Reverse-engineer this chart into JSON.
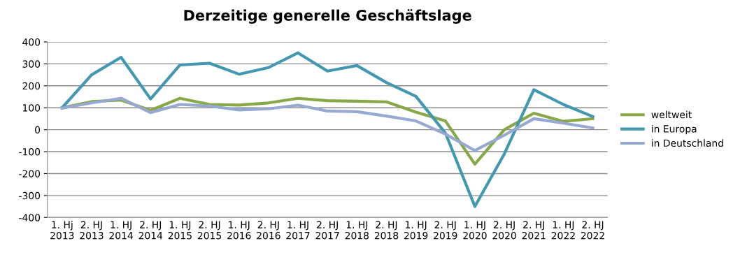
{
  "chart_data": {
    "type": "line",
    "title": "Derzeitige generelle Geschäftslage",
    "categories": [
      "1. Hj\n2013",
      "2. HJ\n2013",
      "1. HJ\n2014",
      "2. HJ\n2014",
      "1. HJ\n2015",
      "2. HJ\n2015",
      "1. HJ\n2016",
      "2. HJ\n2016",
      "1. HJ\n2017",
      "2. HJ\n2017",
      "1. HJ\n2018",
      "2. HJ\n2018",
      "1. HJ\n2019",
      "2. HJ\n2019",
      "1. HJ\n2020",
      "2. HJ\n2020",
      "2. HJ\n2021",
      "1. HJ\n2022",
      "2. HJ\n2022"
    ],
    "series": [
      {
        "name": "weltweit",
        "color": "#86a846",
        "values": [
          100,
          128,
          135,
          88,
          143,
          115,
          112,
          122,
          143,
          132,
          130,
          127,
          80,
          40,
          -157,
          0,
          75,
          38,
          50
        ]
      },
      {
        "name": "in Europa",
        "color": "#4298b0",
        "values": [
          100,
          250,
          330,
          140,
          295,
          303,
          253,
          283,
          350,
          267,
          292,
          215,
          152,
          -15,
          -350,
          -110,
          182,
          115,
          60
        ]
      },
      {
        "name": "in Deutschland",
        "color": "#95a9d3",
        "values": [
          98,
          122,
          143,
          78,
          115,
          108,
          90,
          95,
          112,
          85,
          82,
          62,
          40,
          -20,
          -95,
          -25,
          50,
          30,
          8
        ]
      }
    ],
    "ylim": [
      -400,
      400
    ],
    "yticks": [
      -400,
      -300,
      -200,
      -100,
      0,
      100,
      200,
      300,
      400
    ],
    "grid": "y",
    "legend": "right",
    "marker": "none",
    "line_style": "solid"
  }
}
